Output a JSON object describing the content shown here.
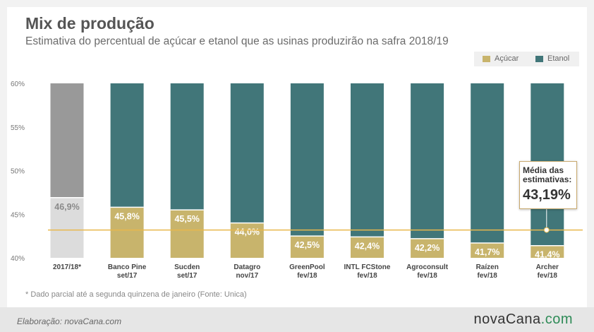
{
  "title": "Mix de produção",
  "subtitle": "Estimativa do percentual de açúcar e etanol que as usinas produzirão na safra 2018/19",
  "legend": {
    "sugar_label": "Açúcar",
    "ethanol_label": "Etanol"
  },
  "colors": {
    "sugar": "#c8b46c",
    "ethanol": "#417679",
    "reference_sugar": "#dcdcdc",
    "reference_ethanol": "#999999",
    "average_line": "#e8b74c"
  },
  "chart_data": {
    "type": "bar",
    "stacked": true,
    "ylim": [
      40,
      60
    ],
    "yticks": [
      40,
      45,
      50,
      55,
      60
    ],
    "ytick_labels": [
      "40%",
      "45%",
      "50%",
      "55%",
      "60%"
    ],
    "categories": [
      [
        "2017/18*"
      ],
      [
        "Banco Pine",
        "set/17"
      ],
      [
        "Sucden",
        "set/17"
      ],
      [
        "Datagro",
        "nov/17"
      ],
      [
        "GreenPool",
        "fev/18"
      ],
      [
        "INTL FCStone",
        "fev/18"
      ],
      [
        "Agroconsult",
        "fev/18"
      ],
      [
        "Raízen",
        "fev/18"
      ],
      [
        "Archer",
        "fev/18"
      ]
    ],
    "sugar_values": [
      46.9,
      45.8,
      45.5,
      44.0,
      42.5,
      42.4,
      42.2,
      41.7,
      41.4
    ],
    "value_labels": [
      "46,9%",
      "45,8%",
      "45,5%",
      "44,0%",
      "42,5%",
      "42,4%",
      "42,2%",
      "41,7%",
      "41,4%"
    ],
    "average": 43.19,
    "average_label_title": "Média das estimativas:",
    "average_label_value": "43,19%",
    "grid": false
  },
  "footnote": "* Dado parcial até a segunda quinzena de janeiro (Fonte: Unica)",
  "credit": "Elaboração: novaCana.com",
  "logo": {
    "main": "novaCana",
    "suffix": ".com"
  }
}
